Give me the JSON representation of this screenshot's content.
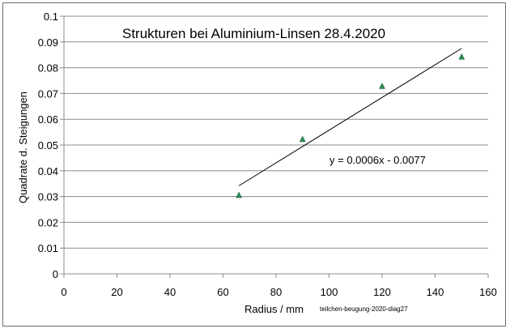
{
  "chart_data": {
    "type": "scatter",
    "title": "Strukturen bei Aluminium-Linsen 28.4.2020",
    "xlabel": "Radius / mm",
    "ylabel": "Quadrate d. Steigungen",
    "xlim": [
      0,
      160
    ],
    "ylim": [
      0,
      0.1
    ],
    "xticks": [
      "0",
      "20",
      "40",
      "60",
      "80",
      "100",
      "120",
      "140",
      "160"
    ],
    "yticks": [
      "0",
      "0.01",
      "0.02",
      "0.03",
      "0.04",
      "0.05",
      "0.06",
      "0.07",
      "0.08",
      "0.09",
      "0.1"
    ],
    "grid": "horizontal",
    "series": [
      {
        "marker": "triangle",
        "color": "#2e8b57",
        "x": [
          66,
          90,
          120,
          150
        ],
        "y": [
          0.0305,
          0.0522,
          0.0728,
          0.0842
        ]
      }
    ],
    "trendline": {
      "type": "linear",
      "color": "#000000",
      "x_range": [
        66,
        150
      ],
      "y_range": [
        0.0342,
        0.0875
      ],
      "equation": "y = 0.0006x - 0.0077"
    },
    "annotation": "teilchen-beugung-2020-diag27"
  }
}
